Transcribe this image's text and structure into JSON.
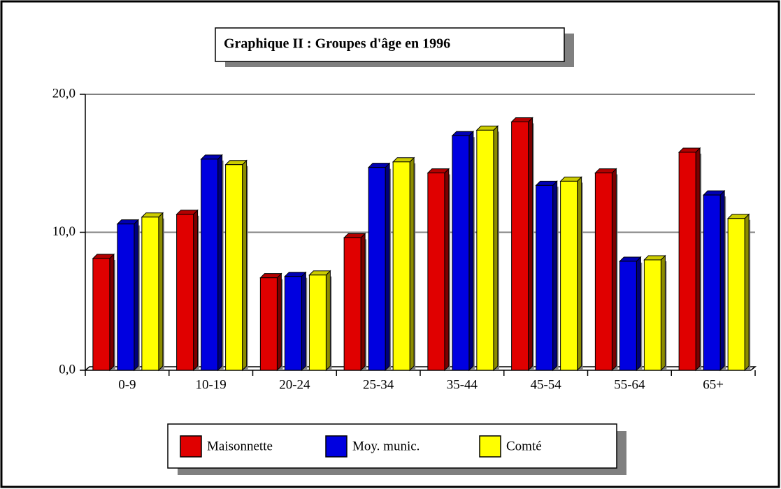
{
  "chart_data": {
    "type": "bar3d",
    "title": "Graphique II : Groupes d'âge en 1996",
    "categories": [
      "0-9",
      "10-19",
      "20-24",
      "25-34",
      "35-44",
      "45-54",
      "55-64",
      "65+"
    ],
    "series": [
      {
        "name": "Maisonnette",
        "color": "#e00000",
        "label_color": "#1a6b1a",
        "values": [
          8.1,
          11.3,
          6.7,
          9.6,
          14.3,
          18.0,
          14.3,
          15.8
        ]
      },
      {
        "name": "Moy. munic.",
        "color": "#0000e0",
        "values": [
          10.6,
          15.3,
          6.8,
          14.7,
          17.0,
          13.4,
          7.9,
          12.7
        ]
      },
      {
        "name": "Comté",
        "color": "#ffff00",
        "values": [
          11.1,
          14.9,
          6.9,
          15.1,
          17.4,
          13.7,
          8.0,
          11.0
        ]
      }
    ],
    "ylim": [
      0,
      20
    ],
    "yticks": [
      {
        "value": 0,
        "label": "0,0"
      },
      {
        "value": 10,
        "label": "10,0"
      },
      {
        "value": 20,
        "label": "20,0"
      }
    ],
    "grid": true
  }
}
